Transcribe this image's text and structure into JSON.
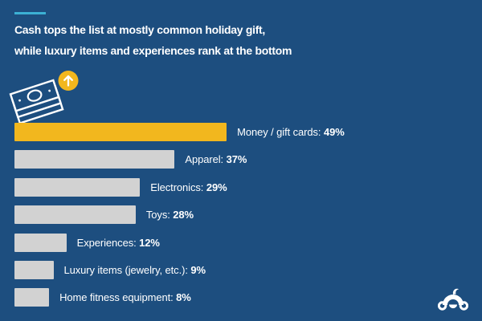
{
  "title": {
    "text": "Cash tops the list at mostly common holiday gift, while luxury items and experiences rank at the bottom",
    "lines": [
      "Cash tops the list at mostly common holiday gift,",
      "while luxury items and experiences rank at the bottom"
    ]
  },
  "colors": {
    "background": "#1D4E7F",
    "accent_yellow": "#F2B71E",
    "bar_gray": "#D2D2D2",
    "dash_teal": "#3CB1D4",
    "text_white": "#FFFFFF"
  },
  "icons": {
    "money_stack": "money-stack-icon",
    "up_arrow": "up-arrow-circle-icon",
    "brand_logo": "surveymonkey-logo"
  },
  "chart_data": {
    "type": "bar",
    "orientation": "horizontal",
    "title": "Cash tops the list at mostly common holiday gift, while luxury items and experiences rank at the bottom",
    "categories": [
      "Money / gift cards",
      "Apparel",
      "Electronics",
      "Toys",
      "Experiences",
      "Luxury items (jewelry, etc.)",
      "Home fitness equipment"
    ],
    "values": [
      49,
      37,
      29,
      28,
      12,
      9,
      8
    ],
    "value_labels": [
      "49%",
      "37%",
      "29%",
      "28%",
      "12%",
      "9%",
      "8%"
    ],
    "label_separator": ": ",
    "highlight_index": 0,
    "xlim": [
      0,
      100
    ],
    "grid": false,
    "legend": false,
    "value_label_position": "right-of-bar"
  }
}
